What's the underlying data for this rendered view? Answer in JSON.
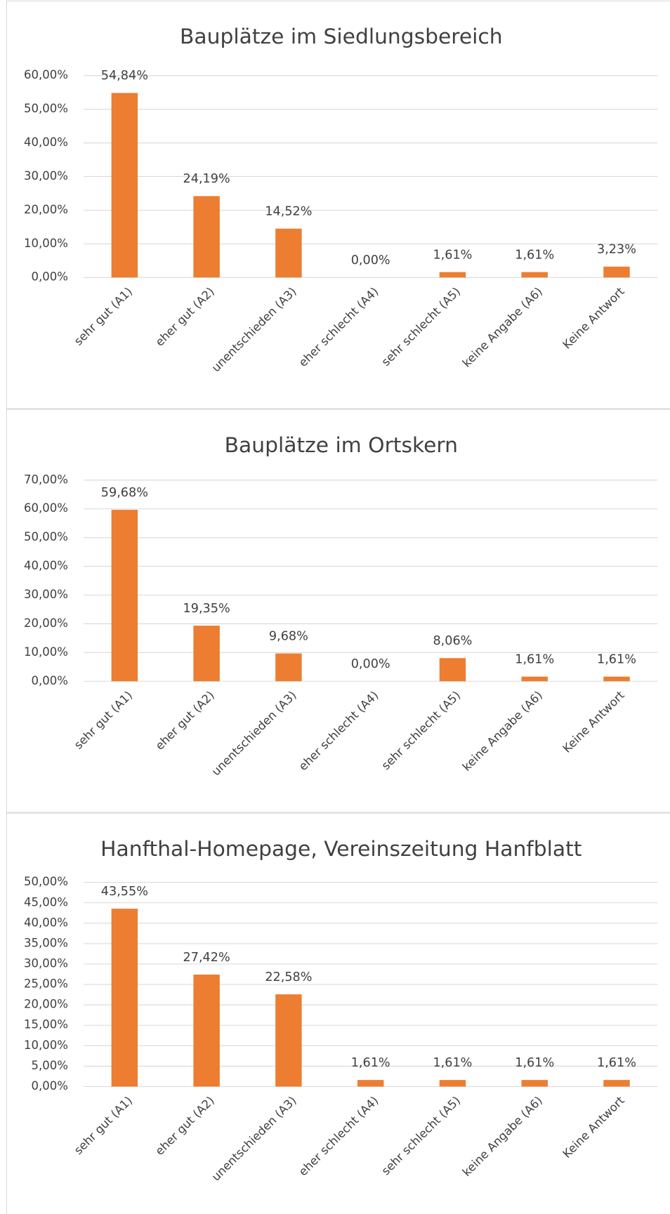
{
  "chart_data": [
    {
      "type": "bar",
      "title": "Bauplätze im Siedlungsbereich",
      "categories": [
        "sehr gut (A1)",
        "eher gut (A2)",
        "unentschieden (A3)",
        "eher schlecht (A4)",
        "sehr schlecht (A5)",
        "keine Angabe (A6)",
        "Keine Antwort"
      ],
      "values": [
        54.84,
        24.19,
        14.52,
        0,
        1.61,
        1.61,
        3.23
      ],
      "value_labels": [
        "54,84%",
        "24,19%",
        "14,52%",
        "0,00%",
        "1,61%",
        "1,61%",
        "3,23%"
      ],
      "color": "#ed7d31",
      "ylim": [
        0,
        60
      ],
      "yticks": [
        {
          "value": 0,
          "label": "0,00%"
        },
        {
          "value": 10,
          "label": "10,00%"
        },
        {
          "value": 20,
          "label": "20,00%"
        },
        {
          "value": 30,
          "label": "30,00%"
        },
        {
          "value": 40,
          "label": "40,00%"
        },
        {
          "value": 50,
          "label": "50,00%"
        },
        {
          "value": 60,
          "label": "60,00%"
        }
      ],
      "grid": true
    },
    {
      "type": "bar",
      "title": "Bauplätze im Ortskern",
      "categories": [
        "sehr gut (A1)",
        "eher gut (A2)",
        "unentschieden (A3)",
        "eher schlecht (A4)",
        "sehr schlecht (A5)",
        "keine Angabe (A6)",
        "Keine Antwort"
      ],
      "values": [
        59.68,
        19.35,
        9.68,
        0,
        8.06,
        1.61,
        1.61
      ],
      "value_labels": [
        "59,68%",
        "19,35%",
        "9,68%",
        "0,00%",
        "8,06%",
        "1,61%",
        "1,61%"
      ],
      "color": "#ed7d31",
      "ylim": [
        0,
        70
      ],
      "yticks": [
        {
          "value": 0,
          "label": "0,00%"
        },
        {
          "value": 10,
          "label": "10,00%"
        },
        {
          "value": 20,
          "label": "20,00%"
        },
        {
          "value": 30,
          "label": "30,00%"
        },
        {
          "value": 40,
          "label": "40,00%"
        },
        {
          "value": 50,
          "label": "50,00%"
        },
        {
          "value": 60,
          "label": "60,00%"
        },
        {
          "value": 70,
          "label": "70,00%"
        }
      ],
      "grid": true
    },
    {
      "type": "bar",
      "title": "Hanfthal-Homepage, Vereinszeitung Hanfblatt",
      "categories": [
        "sehr gut (A1)",
        "eher gut (A2)",
        "unentschieden (A3)",
        "eher schlecht (A4)",
        "sehr schlecht (A5)",
        "keine Angabe (A6)",
        "Keine Antwort"
      ],
      "values": [
        43.55,
        27.42,
        22.58,
        1.61,
        1.61,
        1.61,
        1.61
      ],
      "value_labels": [
        "43,55%",
        "27,42%",
        "22,58%",
        "1,61%",
        "1,61%",
        "1,61%",
        "1,61%"
      ],
      "color": "#ed7d31",
      "ylim": [
        0,
        50
      ],
      "yticks": [
        {
          "value": 0,
          "label": "0,00%"
        },
        {
          "value": 5,
          "label": "5,00%"
        },
        {
          "value": 10,
          "label": "10,00%"
        },
        {
          "value": 15,
          "label": "15,00%"
        },
        {
          "value": 20,
          "label": "20,00%"
        },
        {
          "value": 25,
          "label": "25,00%"
        },
        {
          "value": 30,
          "label": "30,00%"
        },
        {
          "value": 35,
          "label": "35,00%"
        },
        {
          "value": 40,
          "label": "40,00%"
        },
        {
          "value": 45,
          "label": "45,00%"
        },
        {
          "value": 50,
          "label": "50,00%"
        }
      ],
      "grid": true
    }
  ]
}
